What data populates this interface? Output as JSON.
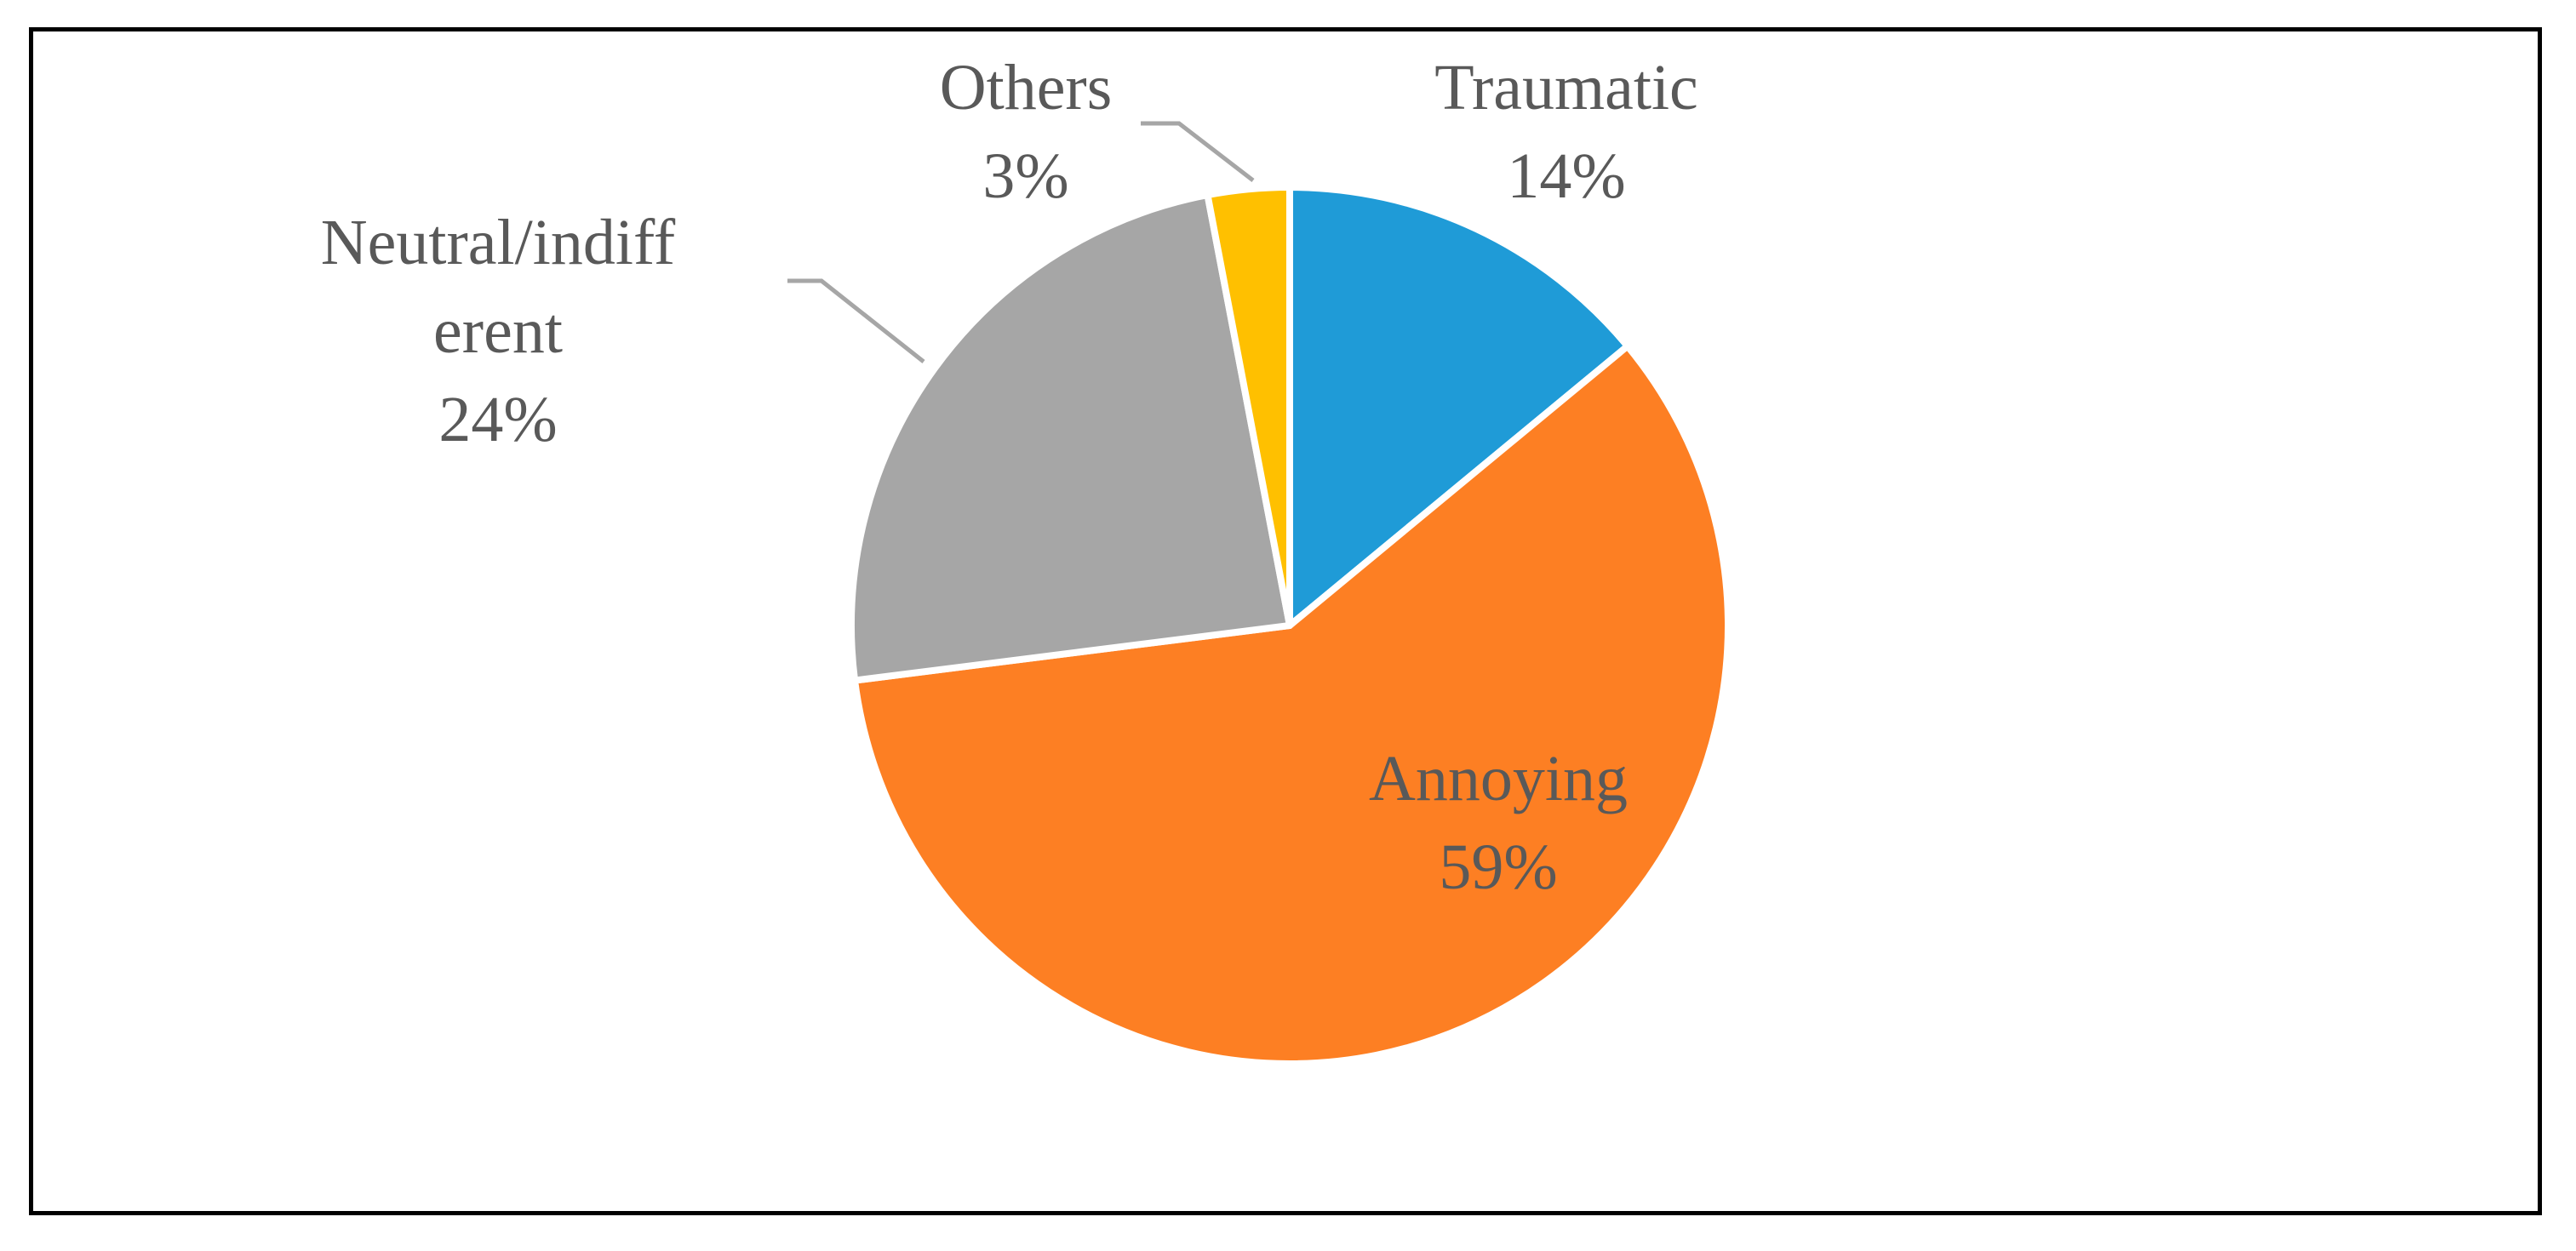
{
  "chart_data": {
    "type": "pie",
    "title": "",
    "categories": [
      "Traumatic",
      "Annoying",
      "Neutral/indifferent",
      "Others"
    ],
    "values": [
      14,
      59,
      24,
      3
    ],
    "units": "%",
    "label_lines": [
      [
        "Traumatic",
        "14%"
      ],
      [
        "Annoying",
        "59%"
      ],
      [
        "Neutral/indiff",
        "erent",
        "24%"
      ],
      [
        "Others",
        "3%"
      ]
    ],
    "colors": [
      "#1f9bd7",
      "#fd7f23",
      "#a6a6a6",
      "#ffc000"
    ],
    "slice_border_color": "#ffffff",
    "leader_line_color": "#a6a6a6",
    "label_color": "#595959",
    "legend": "none",
    "start_angle_deg": 0,
    "direction": "clockwise"
  }
}
